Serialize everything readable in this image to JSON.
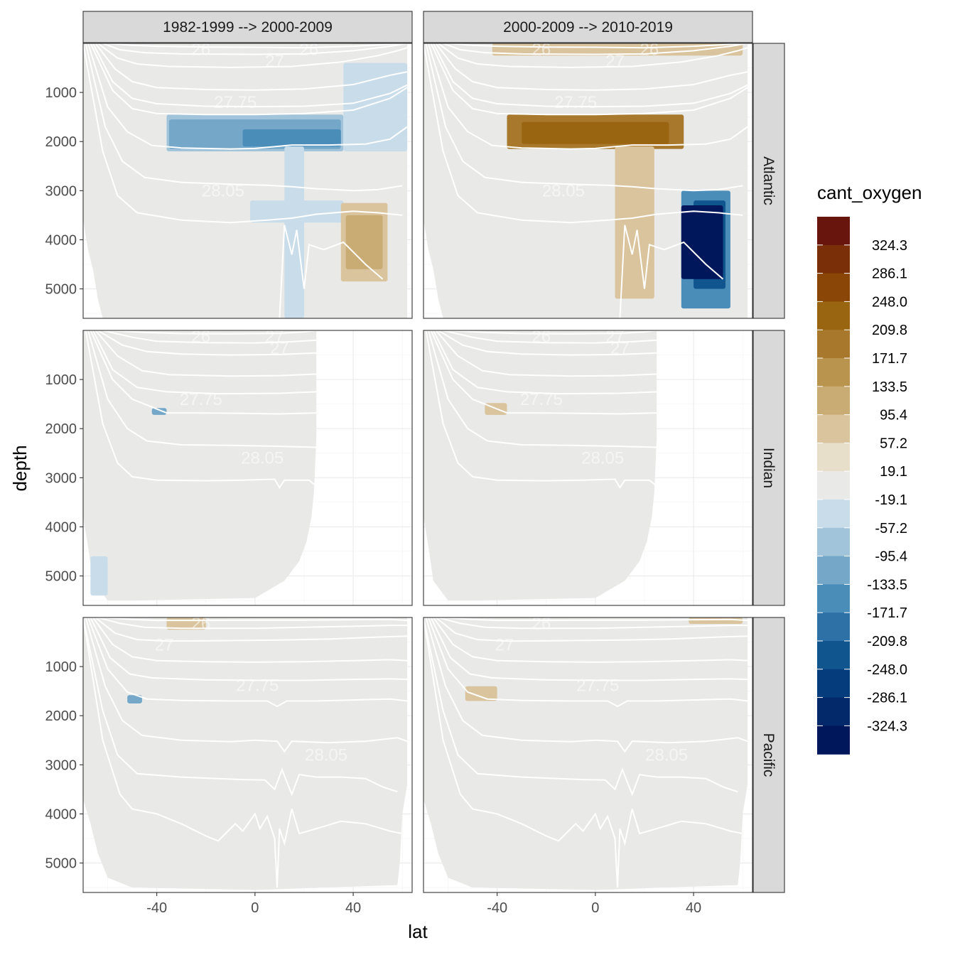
{
  "chart_data": {
    "type": "heatmap",
    "xlabel": "lat",
    "ylabel": "depth",
    "x_ticks": [
      "-40",
      "0",
      "40"
    ],
    "y_ticks": [
      "1000",
      "2000",
      "3000",
      "4000",
      "5000"
    ],
    "xlim": [
      -70,
      64
    ],
    "ylim": [
      5600,
      0
    ],
    "y_reversed": true,
    "grid": true,
    "legend_title": "cant_oxygen",
    "legend_position": "right",
    "legend_labels": [
      "324.3",
      "286.1",
      "248.0",
      "209.8",
      "171.7",
      "133.5",
      "95.4",
      "57.2",
      "19.1",
      "-19.1",
      "-57.2",
      "-95.4",
      "-133.5",
      "-171.7",
      "-209.8",
      "-248.0",
      "-286.1",
      "-324.3"
    ],
    "legend_colors": [
      "#67150d",
      "#7a2f08",
      "#8a4606",
      "#9a6511",
      "#a8792c",
      "#b9944f",
      "#c9ac74",
      "#dac49d",
      "#e8dfcb",
      "#e9eae8",
      "#c9dcea",
      "#a2c4db",
      "#74a7c8",
      "#4a8db9",
      "#2d71a7",
      "#11558f",
      "#053d7c",
      "#03296a",
      "#01175c"
    ],
    "col_facets": [
      "1982-1999 --> 2000-2009",
      "2000-2009 --> 2010-2019"
    ],
    "row_facets": [
      "Atlantic",
      "Indian",
      "Pacific"
    ],
    "isopycnal_labels": [
      "26",
      "27",
      "27.75",
      "28.05"
    ],
    "colors": {
      "ocean_background": "#e9eae8",
      "isopycnal": "#ffffff",
      "strip": "#d9d9d9"
    },
    "anomalies": [
      {
        "row": "Atlantic",
        "col": 0,
        "color": "#a2c4db",
        "lat": [
          -36,
          36
        ],
        "depth": [
          1450,
          2200
        ]
      },
      {
        "row": "Atlantic",
        "col": 0,
        "color": "#74a7c8",
        "lat": [
          -35,
          35
        ],
        "depth": [
          1550,
          2150
        ]
      },
      {
        "row": "Atlantic",
        "col": 0,
        "color": "#4a8db9",
        "lat": [
          -5,
          35
        ],
        "depth": [
          1750,
          2100
        ]
      },
      {
        "row": "Atlantic",
        "col": 0,
        "color": "#c9dcea",
        "lat": [
          36,
          62
        ],
        "depth": [
          400,
          2200
        ]
      },
      {
        "row": "Atlantic",
        "col": 0,
        "color": "#c9dcea",
        "lat": [
          -2,
          36
        ],
        "depth": [
          3200,
          3650
        ]
      },
      {
        "row": "Atlantic",
        "col": 0,
        "color": "#c9dcea",
        "lat": [
          12,
          20
        ],
        "depth": [
          2100,
          5600
        ]
      },
      {
        "row": "Atlantic",
        "col": 0,
        "color": "#dac49d",
        "lat": [
          35,
          54
        ],
        "depth": [
          3250,
          4850
        ]
      },
      {
        "row": "Atlantic",
        "col": 0,
        "color": "#c9ac74",
        "lat": [
          37,
          52
        ],
        "depth": [
          3500,
          4600
        ]
      },
      {
        "row": "Atlantic",
        "col": 1,
        "color": "#a8792c",
        "lat": [
          -36,
          36
        ],
        "depth": [
          1450,
          2150
        ]
      },
      {
        "row": "Atlantic",
        "col": 1,
        "color": "#9a6511",
        "lat": [
          -30,
          30
        ],
        "depth": [
          1600,
          2050
        ]
      },
      {
        "row": "Atlantic",
        "col": 1,
        "color": "#dac49d",
        "lat": [
          8,
          24
        ],
        "depth": [
          2100,
          5200
        ]
      },
      {
        "row": "Atlantic",
        "col": 1,
        "color": "#dac49d",
        "lat": [
          -42,
          60
        ],
        "depth": [
          0,
          250
        ]
      },
      {
        "row": "Atlantic",
        "col": 1,
        "color": "#4a8db9",
        "lat": [
          35,
          55
        ],
        "depth": [
          3000,
          5400
        ]
      },
      {
        "row": "Atlantic",
        "col": 1,
        "color": "#11558f",
        "lat": [
          40,
          53
        ],
        "depth": [
          3200,
          5000
        ]
      },
      {
        "row": "Atlantic",
        "col": 1,
        "color": "#01175c",
        "lat": [
          35,
          52
        ],
        "depth": [
          3300,
          4800
        ]
      },
      {
        "row": "Indian",
        "col": 0,
        "color": "#74a7c8",
        "lat": [
          -42,
          -36
        ],
        "depth": [
          1580,
          1720
        ]
      },
      {
        "row": "Indian",
        "col": 0,
        "color": "#c9dcea",
        "lat": [
          -67,
          -60
        ],
        "depth": [
          4600,
          5400
        ]
      },
      {
        "row": "Indian",
        "col": 1,
        "color": "#dac49d",
        "lat": [
          -45,
          -36
        ],
        "depth": [
          1480,
          1720
        ]
      },
      {
        "row": "Pacific",
        "col": 0,
        "color": "#74a7c8",
        "lat": [
          -52,
          -46
        ],
        "depth": [
          1580,
          1750
        ]
      },
      {
        "row": "Pacific",
        "col": 0,
        "color": "#dac49d",
        "lat": [
          -36,
          -20
        ],
        "depth": [
          0,
          250
        ]
      },
      {
        "row": "Pacific",
        "col": 1,
        "color": "#dac49d",
        "lat": [
          -53,
          -40
        ],
        "depth": [
          1400,
          1700
        ]
      },
      {
        "row": "Pacific",
        "col": 1,
        "color": "#dac49d",
        "lat": [
          38,
          60
        ],
        "depth": [
          0,
          130
        ]
      }
    ]
  }
}
